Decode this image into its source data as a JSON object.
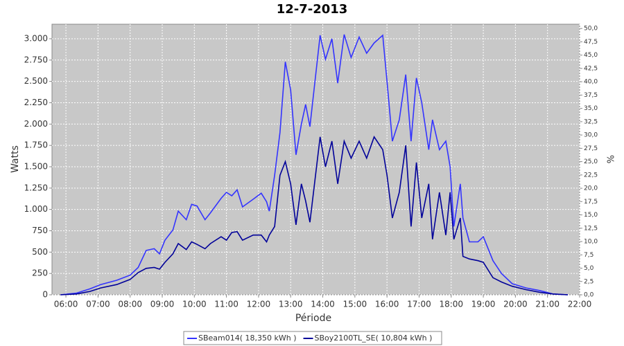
{
  "chart_data": {
    "type": "line",
    "title": "12-7-2013",
    "xlabel": "Période",
    "ylabel": "Watts",
    "y2label": "%",
    "grid": true,
    "legend": "bottom",
    "x": [
      "05:50",
      "06:20",
      "06:45",
      "07:05",
      "07:35",
      "08:00",
      "08:15",
      "08:30",
      "08:45",
      "08:55",
      "09:05",
      "09:20",
      "09:30",
      "09:45",
      "09:55",
      "10:05",
      "10:20",
      "10:30",
      "10:50",
      "11:00",
      "11:10",
      "11:20",
      "11:30",
      "11:50",
      "12:05",
      "12:15",
      "12:20",
      "12:30",
      "12:40",
      "12:50",
      "13:00",
      "13:10",
      "13:20",
      "13:28",
      "13:36",
      "13:55",
      "14:05",
      "14:17",
      "14:28",
      "14:40",
      "14:53",
      "15:08",
      "15:22",
      "15:36",
      "15:52",
      "16:00",
      "16:10",
      "16:23",
      "16:35",
      "16:45",
      "16:55",
      "17:05",
      "17:18",
      "17:25",
      "17:38",
      "17:50",
      "17:58",
      "18:05",
      "18:17",
      "18:22",
      "18:34",
      "18:50",
      "19:00",
      "19:18",
      "19:34",
      "19:54",
      "20:20",
      "20:45",
      "21:10",
      "21:38"
    ],
    "series": [
      {
        "name": "SBeam014( 18,350 kWh )",
        "color": "#3333ff",
        "values": [
          0,
          20,
          70,
          120,
          170,
          230,
          320,
          520,
          540,
          480,
          640,
          760,
          980,
          880,
          1060,
          1040,
          880,
          960,
          1130,
          1200,
          1160,
          1230,
          1030,
          1120,
          1190,
          1090,
          980,
          1400,
          1900,
          2730,
          2400,
          1640,
          2000,
          2230,
          1970,
          3040,
          2760,
          3000,
          2480,
          3050,
          2780,
          3020,
          2830,
          2950,
          3040,
          2500,
          1800,
          2050,
          2580,
          1800,
          2540,
          2250,
          1700,
          2050,
          1700,
          1800,
          1500,
          800,
          1300,
          900,
          620,
          620,
          680,
          400,
          250,
          130,
          80,
          50,
          10,
          0
        ]
      },
      {
        "name": "SBoy2100TL_SE( 10,804 kWh )",
        "color": "#000099",
        "values": [
          0,
          10,
          40,
          80,
          120,
          180,
          260,
          310,
          320,
          300,
          380,
          480,
          600,
          530,
          620,
          590,
          540,
          600,
          680,
          640,
          730,
          740,
          640,
          700,
          700,
          620,
          700,
          800,
          1400,
          1560,
          1300,
          820,
          1300,
          1100,
          850,
          1850,
          1500,
          1800,
          1300,
          1800,
          1600,
          1800,
          1600,
          1850,
          1700,
          1400,
          900,
          1200,
          1750,
          800,
          1550,
          900,
          1300,
          650,
          1200,
          700,
          1200,
          650,
          900,
          450,
          420,
          400,
          380,
          200,
          150,
          100,
          60,
          30,
          10,
          0
        ]
      }
    ],
    "xlim": [
      "05:34",
      "22:00"
    ],
    "xticks": [
      "06:00",
      "07:00",
      "08:00",
      "09:00",
      "10:00",
      "11:00",
      "12:00",
      "13:00",
      "14:00",
      "15:00",
      "16:00",
      "17:00",
      "18:00",
      "19:00",
      "20:00",
      "21:00",
      "22:00"
    ],
    "ylim": [
      0,
      3170
    ],
    "yticks": [
      0,
      250,
      500,
      750,
      {
        "value": 1000,
        "label": "1.000"
      },
      {
        "value": 1250,
        "label": "1.250"
      },
      {
        "value": 1500,
        "label": "1.500"
      },
      {
        "value": 1750,
        "label": "1.750"
      },
      {
        "value": 2000,
        "label": "2.000"
      },
      {
        "value": 2250,
        "label": "2.250"
      },
      {
        "value": 2500,
        "label": "2.500"
      },
      {
        "value": 2750,
        "label": "2.750"
      },
      {
        "value": 3000,
        "label": "3.000"
      }
    ],
    "y2lim": [
      0,
      50.8
    ],
    "y2ticks": [
      {
        "value": 0,
        "label": "0,0"
      },
      {
        "value": 2.5,
        "label": "2,5"
      },
      {
        "value": 5,
        "label": "5,0"
      },
      {
        "value": 7.5,
        "label": "7,5"
      },
      {
        "value": 10,
        "label": "10,0"
      },
      {
        "value": 12.5,
        "label": "12,5"
      },
      {
        "value": 15,
        "label": "15,0"
      },
      {
        "value": 17.5,
        "label": "17,5"
      },
      {
        "value": 20,
        "label": "20,0"
      },
      {
        "value": 22.5,
        "label": "22,5"
      },
      {
        "value": 25,
        "label": "25,0"
      },
      {
        "value": 27.5,
        "label": "27,5"
      },
      {
        "value": 30,
        "label": "30,0"
      },
      {
        "value": 32.5,
        "label": "32,5"
      },
      {
        "value": 35,
        "label": "35,0"
      },
      {
        "value": 37.5,
        "label": "37,5"
      },
      {
        "value": 40,
        "label": "40,0"
      },
      {
        "value": 42.5,
        "label": "42,5"
      },
      {
        "value": 45,
        "label": "45,0"
      },
      {
        "value": 47.5,
        "label": "47,5"
      },
      {
        "value": 50,
        "label": "50,0"
      }
    ]
  }
}
